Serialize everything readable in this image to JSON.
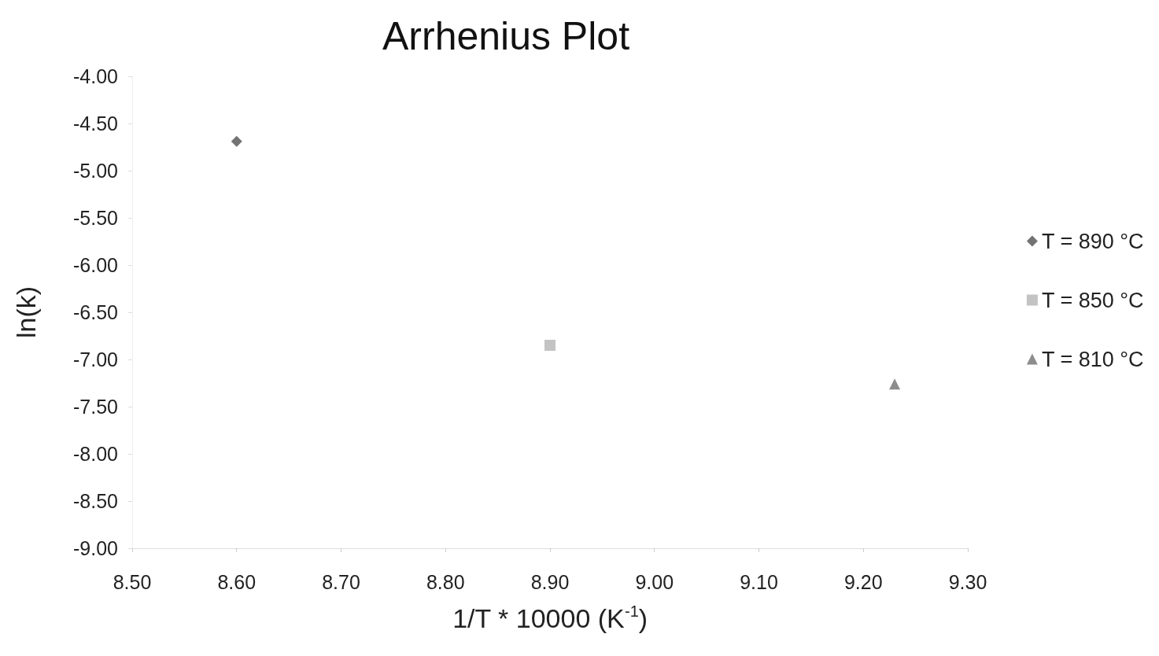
{
  "chart_data": {
    "type": "scatter",
    "title": "Arrhenius Plot",
    "xlabel": "1/T * 10000 (K$^{-1}$)",
    "ylabel": "ln(k)",
    "series": [
      {
        "name": "T = 890 °C",
        "color": "#505050",
        "x": [
          8.6
        ],
        "values": [
          -4.69
        ],
        "marker": "diamond"
      },
      {
        "name": "T = 850 °C",
        "color": "#b4b4b4",
        "x": [
          8.9
        ],
        "values": [
          -6.85
        ],
        "marker": "square"
      },
      {
        "name": "T = 810 °C",
        "color": "#707070",
        "x": [
          9.23
        ],
        "values": [
          -7.26
        ],
        "marker": "triangle"
      }
    ],
    "xlim": [
      8.5,
      9.3
    ],
    "xticks": [
      {
        "value": 8.5,
        "label": "8.50"
      },
      {
        "value": 8.6,
        "label": "8.60"
      },
      {
        "value": 8.7,
        "label": "8.70"
      },
      {
        "value": 8.8,
        "label": "8.80"
      },
      {
        "value": 8.9,
        "label": "8.90"
      },
      {
        "value": 9.0,
        "label": "9.00"
      },
      {
        "value": 9.1,
        "label": "9.10"
      },
      {
        "value": 9.2,
        "label": "9.20"
      },
      {
        "value": 9.3,
        "label": "9.30"
      }
    ],
    "ylim": [
      -9,
      -4
    ],
    "yticks": [
      {
        "value": -9,
        "label": "-9.00"
      },
      {
        "value": -8.5,
        "label": "-8.50"
      },
      {
        "value": -8,
        "label": "-8.00"
      },
      {
        "value": -7.5,
        "label": "-7.50"
      },
      {
        "value": -7,
        "label": "-7.00"
      },
      {
        "value": -6.5,
        "label": "-6.50"
      },
      {
        "value": -6,
        "label": "-6.00"
      },
      {
        "value": -5.5,
        "label": "-5.50"
      },
      {
        "value": -5,
        "label": "-5.00"
      },
      {
        "value": -4.5,
        "label": "-4.50"
      },
      {
        "value": -4,
        "label": "-4.00"
      }
    ],
    "grid": false,
    "legend": "right"
  }
}
